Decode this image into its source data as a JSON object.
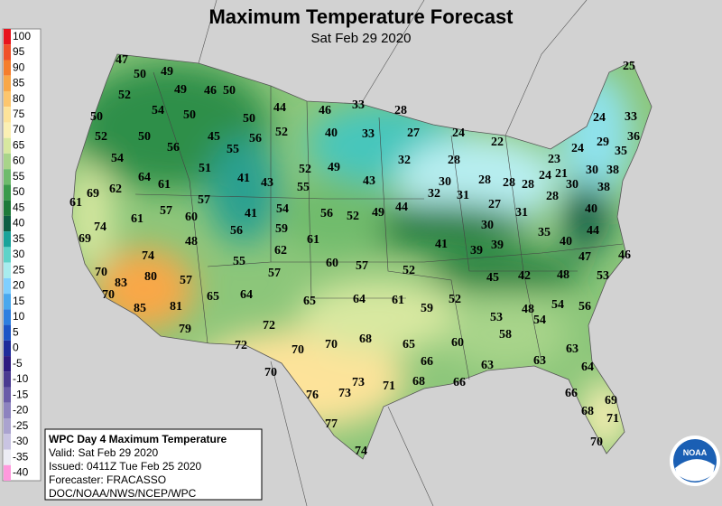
{
  "header": {
    "title": "Maximum Temperature Forecast",
    "subtitle": "Sat Feb 29 2020"
  },
  "legend": [
    {
      "label": "100",
      "color": "#e8141e"
    },
    {
      "label": "95",
      "color": "#f0502a"
    },
    {
      "label": "90",
      "color": "#f57e2d"
    },
    {
      "label": "85",
      "color": "#f9a747"
    },
    {
      "label": "80",
      "color": "#fdc66e"
    },
    {
      "label": "75",
      "color": "#fde39a"
    },
    {
      "label": "70",
      "color": "#fbf0b4"
    },
    {
      "label": "65",
      "color": "#d8e8a0"
    },
    {
      "label": "60",
      "color": "#a8d48a"
    },
    {
      "label": "55",
      "color": "#6fbb6c"
    },
    {
      "label": "50",
      "color": "#3a9a4b"
    },
    {
      "label": "45",
      "color": "#1e7a3a"
    },
    {
      "label": "40",
      "color": "#0e5e44"
    },
    {
      "label": "35",
      "color": "#1aa39a"
    },
    {
      "label": "30",
      "color": "#5fd3c9"
    },
    {
      "label": "25",
      "color": "#a8ecee"
    },
    {
      "label": "20",
      "color": "#7fcfff"
    },
    {
      "label": "15",
      "color": "#4aa8ee"
    },
    {
      "label": "10",
      "color": "#2d7fe0"
    },
    {
      "label": "5",
      "color": "#1b54c6"
    },
    {
      "label": "0",
      "color": "#1e2b9a"
    },
    {
      "label": "-5",
      "color": "#2d1a80"
    },
    {
      "label": "-10",
      "color": "#4a3a90"
    },
    {
      "label": "-15",
      "color": "#6a5ca8"
    },
    {
      "label": "-20",
      "color": "#8d83bf"
    },
    {
      "label": "-25",
      "color": "#aaa3cf"
    },
    {
      "label": "-30",
      "color": "#c9c4e2"
    },
    {
      "label": "-35",
      "color": "#ececf4"
    },
    {
      "label": "-40",
      "color": "#ff99dd"
    }
  ],
  "temperatures": [
    47,
    50,
    49,
    46,
    50,
    49,
    52,
    54,
    50,
    50,
    44,
    46,
    33,
    28,
    50,
    52,
    50,
    45,
    56,
    52,
    40,
    33,
    27,
    24,
    22,
    24,
    33,
    25,
    29,
    35,
    36,
    24,
    23,
    21,
    24,
    30,
    38,
    28,
    28,
    30,
    28,
    38,
    40,
    44,
    46,
    53,
    47,
    40,
    35,
    31,
    27,
    28,
    30,
    28,
    32,
    30,
    31,
    32,
    43,
    44,
    49,
    52,
    56,
    55,
    52,
    49,
    41,
    39,
    39,
    45,
    42,
    48,
    52,
    57,
    60,
    61,
    62,
    59,
    54,
    41,
    43,
    41,
    51,
    56,
    55,
    54,
    64,
    61,
    62,
    69,
    61,
    57,
    57,
    60,
    61,
    74,
    56,
    48,
    69,
    74,
    80,
    70,
    83,
    70,
    85,
    81,
    57,
    55,
    57,
    65,
    64,
    65,
    64,
    61,
    59,
    52,
    53,
    48,
    54,
    54,
    56,
    79,
    72,
    72,
    70,
    70,
    68,
    65,
    60,
    58,
    63,
    63,
    66,
    63,
    64,
    66,
    68,
    71,
    73,
    73,
    76,
    70,
    66,
    69,
    68,
    71,
    77,
    70,
    74
  ],
  "info": {
    "title": "WPC Day 4 Maximum Temperature",
    "lines": [
      "Valid: Sat Feb 29 2020",
      "Issued: 0411Z Tue Feb 25 2020",
      "Forecaster: FRACASSO",
      "DOC/NOAA/NWS/NCEP/WPC"
    ]
  },
  "logo_text": "NOAA"
}
